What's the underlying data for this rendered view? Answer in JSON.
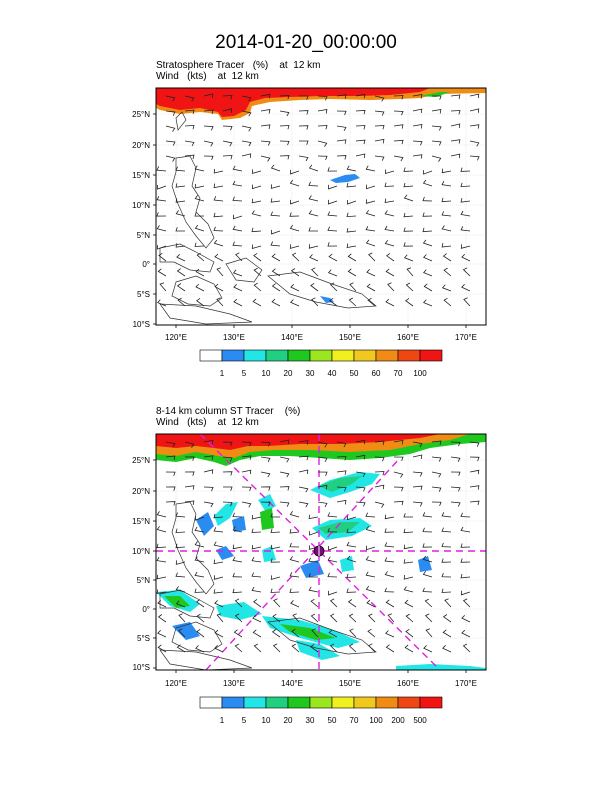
{
  "title": "2014-01-20_00:00:00",
  "panels": [
    {
      "label_line1": "Stratosphere Tracer   (%)    at  12 km",
      "label_line2": "Wind   (kts)    at  12 km",
      "lat_labels": [
        "25°N",
        "20°N",
        "15°N",
        "10°N",
        "5°N",
        "0°",
        "5°S",
        "10°S"
      ],
      "lon_labels": [
        "120°E",
        "130°E",
        "140°E",
        "150°E",
        "160°E",
        "170°E"
      ],
      "colorbar_labels": [
        "1",
        "5",
        "10",
        "20",
        "30",
        "40",
        "50",
        "60",
        "70",
        "100"
      ],
      "colorbar_colors": [
        "#ffffff",
        "#2a8cf0",
        "#22e6e6",
        "#20d080",
        "#1ec81e",
        "#9be61e",
        "#f0f01e",
        "#f0c81e",
        "#f08c14",
        "#f04614",
        "#f01414"
      ]
    },
    {
      "label_line1": "8-14 km column ST Tracer    (%)",
      "label_line2": "Wind   (kts)    at  12 km",
      "lat_labels": [
        "25°N",
        "20°N",
        "15°N",
        "10°N",
        "5°N",
        "0°",
        "5°S",
        "10°S"
      ],
      "lon_labels": [
        "120°E",
        "130°E",
        "140°E",
        "150°E",
        "160°E",
        "170°E"
      ],
      "colorbar_labels": [
        "1",
        "5",
        "10",
        "20",
        "30",
        "50",
        "70",
        "100",
        "200",
        "500"
      ],
      "colorbar_colors": [
        "#ffffff",
        "#2a8cf0",
        "#22e6e6",
        "#20d080",
        "#1ec81e",
        "#9be61e",
        "#f0f01e",
        "#f0c81e",
        "#f08c14",
        "#f04614",
        "#f01414"
      ]
    }
  ]
}
